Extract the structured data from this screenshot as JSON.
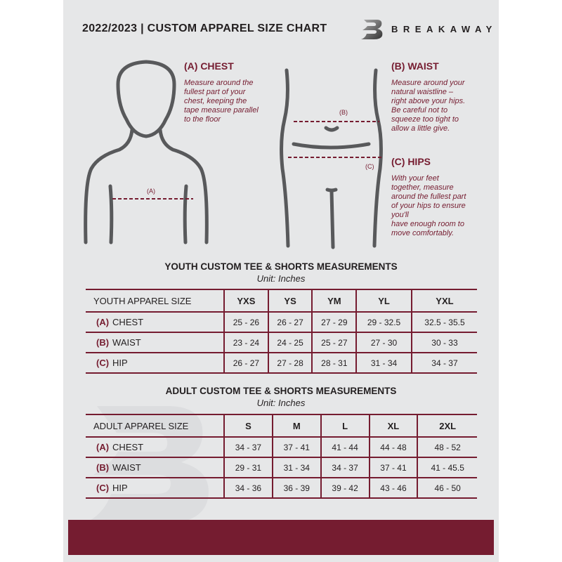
{
  "header": {
    "title": "2022/2023  |  CUSTOM APPAREL SIZE CHART",
    "brand": "BREAKAWAY",
    "logo_letter": "B"
  },
  "colors": {
    "accent": "#751c30",
    "background": "#e6e7e8",
    "text": "#231f20",
    "figure": "#58595b"
  },
  "chest": {
    "heading": "(A) CHEST",
    "marker": "(A)",
    "text": "Measure around the\nfullest part of your\nchest, keeping the\ntape measure parallel\nto the floor"
  },
  "waist": {
    "heading": "(B) WAIST",
    "marker": "(B)",
    "text": "Measure around your\nnatural waistline –\nright above your hips.\nBe careful not to\nsqueeze too tight to\nallow a little give."
  },
  "hips": {
    "heading": "(C) HIPS",
    "marker": "(C)",
    "text": "With your feet\ntogether, measure\naround the fullest part\nof your hips to ensure\nyou'll\nhave enough room to\nmove comfortably."
  },
  "youth": {
    "title": "YOUTH CUSTOM TEE & SHORTS MEASUREMENTS",
    "unit": "Unit: Inches",
    "header": "YOUTH APPAREL SIZE",
    "sizes": [
      "YXS",
      "YS",
      "YM",
      "YL",
      "YXL"
    ],
    "rows": [
      {
        "tag": "(A)",
        "name": "CHEST",
        "values": [
          "25 - 26",
          "26 - 27",
          "27 - 29",
          "29 - 32.5",
          "32.5 - 35.5"
        ]
      },
      {
        "tag": "(B)",
        "name": "WAIST",
        "values": [
          "23 - 24",
          "24 - 25",
          "25 - 27",
          "27 - 30",
          "30 - 33"
        ]
      },
      {
        "tag": "(C)",
        "name": "HIP",
        "values": [
          "26 - 27",
          "27 - 28",
          "28 - 31",
          "31 - 34",
          "34 - 37"
        ]
      }
    ]
  },
  "adult": {
    "title": "ADULT CUSTOM TEE & SHORTS MEASUREMENTS",
    "unit": "Unit: Inches",
    "header": "ADULT APPAREL SIZE",
    "sizes": [
      "S",
      "M",
      "L",
      "XL",
      "2XL"
    ],
    "rows": [
      {
        "tag": "(A)",
        "name": "CHEST",
        "values": [
          "34 - 37",
          "37 - 41",
          "41 - 44",
          "44 - 48",
          "48 - 52"
        ]
      },
      {
        "tag": "(B)",
        "name": "WAIST",
        "values": [
          "29 - 31",
          "31 - 34",
          "34 - 37",
          "37 - 41",
          "41 - 45.5"
        ]
      },
      {
        "tag": "(C)",
        "name": "HIP",
        "values": [
          "34 - 36",
          "36 - 39",
          "39 - 42",
          "43 - 46",
          "46 - 50"
        ]
      }
    ]
  }
}
